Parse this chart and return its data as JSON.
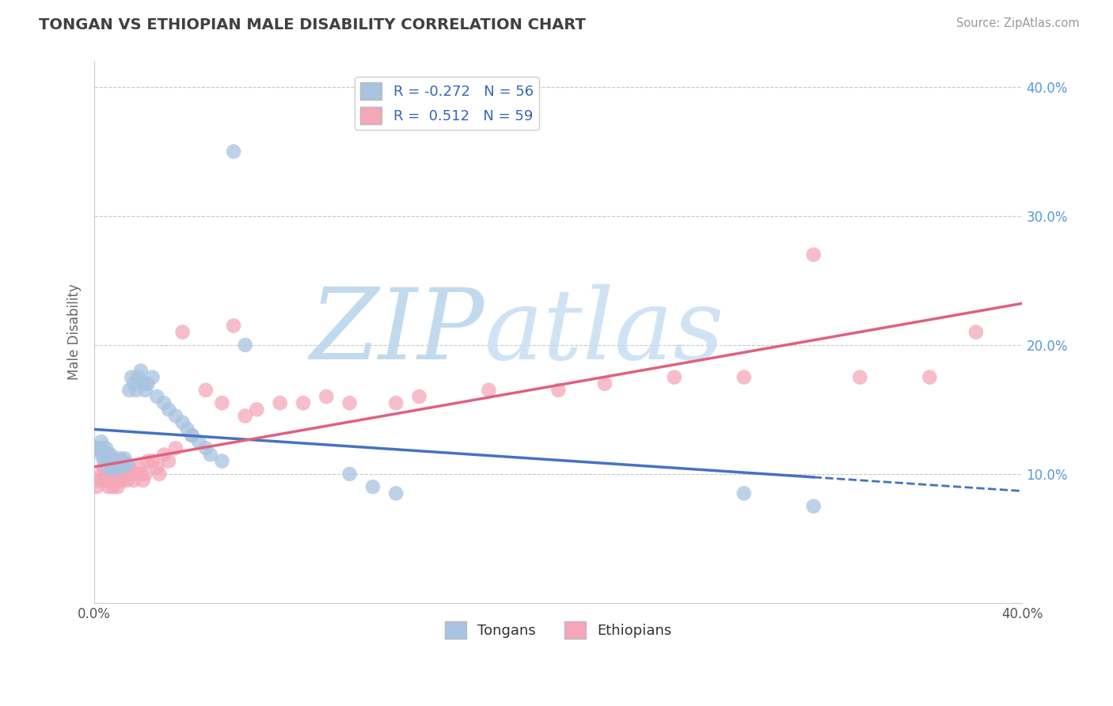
{
  "title": "TONGAN VS ETHIOPIAN MALE DISABILITY CORRELATION CHART",
  "source": "Source: ZipAtlas.com",
  "ylabel": "Male Disability",
  "xlabel": "",
  "xlim": [
    0.0,
    0.4
  ],
  "ylim": [
    0.0,
    0.42
  ],
  "yticks": [
    0.1,
    0.2,
    0.3,
    0.4
  ],
  "xticks": [
    0.0,
    0.1,
    0.2,
    0.3,
    0.4
  ],
  "right_ytick_labels": [
    "10.0%",
    "20.0%",
    "30.0%",
    "40.0%"
  ],
  "xtick_labels": [
    "0.0%",
    "",
    "",
    "",
    "40.0%"
  ],
  "tongan_R": -0.272,
  "tongan_N": 56,
  "ethiopian_R": 0.512,
  "ethiopian_N": 59,
  "tongan_color": "#a8c4e0",
  "ethiopian_color": "#f4a7b9",
  "tongan_line_color": "#4472c4",
  "ethiopian_line_color": "#e06080",
  "background_color": "#ffffff",
  "grid_color": "#c8c8c8",
  "title_color": "#404040",
  "watermark_zip_color": "#c8dff0",
  "watermark_atlas_color": "#d8e8f4",
  "tongan_x": [
    0.001,
    0.002,
    0.003,
    0.003,
    0.004,
    0.004,
    0.004,
    0.005,
    0.005,
    0.005,
    0.006,
    0.006,
    0.006,
    0.007,
    0.007,
    0.007,
    0.008,
    0.008,
    0.009,
    0.009,
    0.01,
    0.01,
    0.011,
    0.011,
    0.012,
    0.013,
    0.013,
    0.014,
    0.015,
    0.016,
    0.017,
    0.018,
    0.019,
    0.02,
    0.021,
    0.022,
    0.023,
    0.025,
    0.027,
    0.03,
    0.032,
    0.035,
    0.038,
    0.04,
    0.042,
    0.045,
    0.048,
    0.05,
    0.055,
    0.06,
    0.065,
    0.11,
    0.12,
    0.13,
    0.28,
    0.31
  ],
  "tongan_y": [
    0.12,
    0.12,
    0.115,
    0.125,
    0.11,
    0.115,
    0.12,
    0.11,
    0.115,
    0.12,
    0.105,
    0.11,
    0.115,
    0.105,
    0.11,
    0.115,
    0.105,
    0.11,
    0.105,
    0.11,
    0.105,
    0.11,
    0.105,
    0.112,
    0.11,
    0.107,
    0.112,
    0.108,
    0.165,
    0.175,
    0.17,
    0.165,
    0.175,
    0.18,
    0.17,
    0.165,
    0.17,
    0.175,
    0.16,
    0.155,
    0.15,
    0.145,
    0.14,
    0.135,
    0.13,
    0.125,
    0.12,
    0.115,
    0.11,
    0.35,
    0.2,
    0.1,
    0.09,
    0.085,
    0.085,
    0.075
  ],
  "ethiopian_x": [
    0.001,
    0.002,
    0.003,
    0.003,
    0.004,
    0.004,
    0.005,
    0.005,
    0.006,
    0.006,
    0.007,
    0.007,
    0.008,
    0.008,
    0.009,
    0.009,
    0.01,
    0.01,
    0.011,
    0.012,
    0.013,
    0.014,
    0.015,
    0.016,
    0.017,
    0.018,
    0.019,
    0.02,
    0.021,
    0.022,
    0.023,
    0.025,
    0.027,
    0.028,
    0.03,
    0.032,
    0.035,
    0.038,
    0.042,
    0.048,
    0.055,
    0.06,
    0.065,
    0.07,
    0.08,
    0.09,
    0.1,
    0.11,
    0.13,
    0.14,
    0.17,
    0.2,
    0.22,
    0.25,
    0.28,
    0.31,
    0.33,
    0.36,
    0.38
  ],
  "ethiopian_y": [
    0.09,
    0.095,
    0.095,
    0.1,
    0.095,
    0.105,
    0.095,
    0.105,
    0.09,
    0.1,
    0.095,
    0.105,
    0.09,
    0.1,
    0.095,
    0.105,
    0.09,
    0.1,
    0.105,
    0.095,
    0.1,
    0.095,
    0.105,
    0.1,
    0.095,
    0.1,
    0.105,
    0.1,
    0.095,
    0.1,
    0.11,
    0.11,
    0.105,
    0.1,
    0.115,
    0.11,
    0.12,
    0.21,
    0.13,
    0.165,
    0.155,
    0.215,
    0.145,
    0.15,
    0.155,
    0.155,
    0.16,
    0.155,
    0.155,
    0.16,
    0.165,
    0.165,
    0.17,
    0.175,
    0.175,
    0.27,
    0.175,
    0.175,
    0.21
  ]
}
